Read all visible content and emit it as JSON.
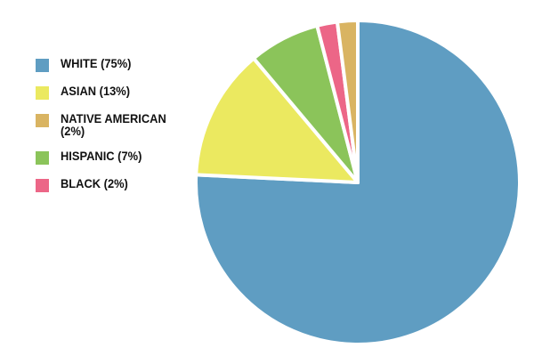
{
  "chart_data": {
    "type": "pie",
    "categories": [
      "WHITE (75%)",
      "ASIAN (13%)",
      "NATIVE AMERICAN (2%)",
      "HISPANIC (7%)",
      "BLACK (2%)"
    ],
    "values": [
      75,
      13,
      2,
      7,
      2
    ],
    "colors": [
      "#5f9dc2",
      "#ebe960",
      "#d9b462",
      "#8bc45a",
      "#ec6687"
    ],
    "legend": "left"
  }
}
